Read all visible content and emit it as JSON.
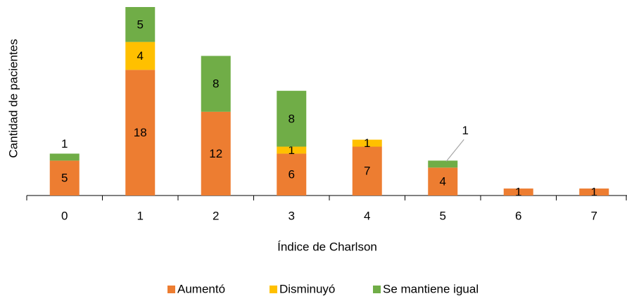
{
  "chart_data": {
    "type": "stacked_bar",
    "xlabel": "Índice de Charlson",
    "ylabel": "Cantidad de pacientes",
    "categories": [
      "0",
      "1",
      "2",
      "3",
      "4",
      "5",
      "6",
      "7"
    ],
    "ylim": [
      0,
      27
    ],
    "series": [
      {
        "name": "Aumentó",
        "color": "#ED7D31",
        "values": [
          5,
          18,
          12,
          6,
          7,
          4,
          1,
          1
        ]
      },
      {
        "name": "Disminuyó",
        "color": "#FFC000",
        "values": [
          null,
          4,
          null,
          1,
          1,
          null,
          null,
          null
        ]
      },
      {
        "name": "Se mantiene igual",
        "color": "#70AD47",
        "values": [
          1,
          5,
          8,
          8,
          null,
          1,
          null,
          null
        ]
      }
    ]
  }
}
